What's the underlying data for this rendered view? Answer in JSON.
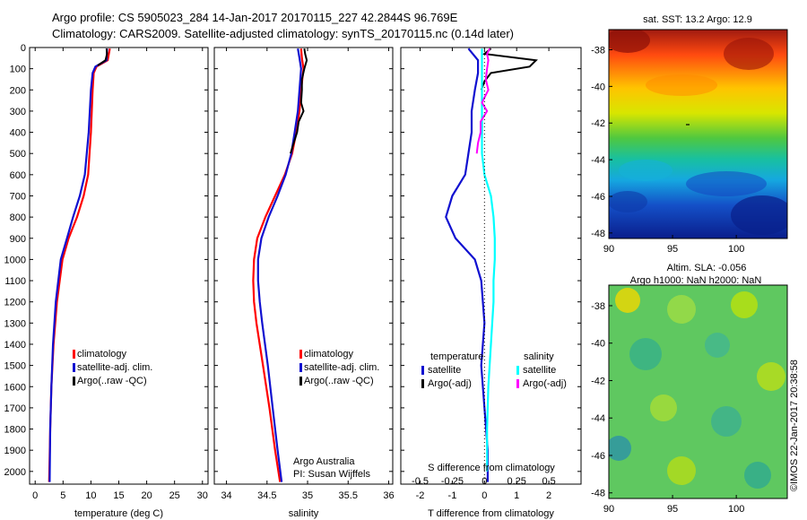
{
  "header": {
    "line1": "Argo profile: CS 5905023_284 14-Jan-2017 20170115_227 42.2844S 96.769E",
    "line2": "Climatology: CARS2009. Satellite-adjusted climatology: synTS_20170115.nc (0.14d later)"
  },
  "colors": {
    "climatology": "#ff0000",
    "satellite": "#1010d0",
    "argo": "#000000",
    "s_satellite": "#00ffff",
    "s_argo": "#ff00ff"
  },
  "chart_data": [
    {
      "id": "temperature",
      "type": "line",
      "xlabel": "temperature (deg C)",
      "xlim": [
        -1,
        31
      ],
      "xticks": [
        0,
        5,
        10,
        15,
        20,
        25,
        30
      ],
      "xtick_labels": [
        "0",
        "5",
        "10",
        "15",
        "20",
        "25",
        "30"
      ],
      "ylim": [
        2060,
        0
      ],
      "yticks": [
        0,
        100,
        200,
        300,
        400,
        500,
        600,
        700,
        800,
        900,
        1000,
        1100,
        1200,
        1300,
        1400,
        1500,
        1600,
        1700,
        1800,
        1900,
        2000
      ],
      "legend": [
        "climatology",
        "satellite-adj. clim.",
        "Argo(..raw -QC)"
      ],
      "series": [
        {
          "name": "climatology",
          "color": "#ff0000",
          "depth": [
            5,
            60,
            90,
            120,
            200,
            400,
            600,
            700,
            800,
            900,
            1000,
            1200,
            1400,
            1600,
            1800,
            2050
          ],
          "values": [
            13.4,
            13.0,
            11.0,
            10.5,
            10.3,
            10.0,
            9.5,
            8.7,
            7.5,
            6.0,
            4.9,
            3.9,
            3.3,
            2.9,
            2.7,
            2.5
          ]
        },
        {
          "name": "satellite-adj. clim.",
          "color": "#1010d0",
          "depth": [
            5,
            60,
            90,
            120,
            200,
            400,
            600,
            700,
            800,
            900,
            1000,
            1200,
            1400,
            1600,
            1800,
            2050
          ],
          "values": [
            12.9,
            12.8,
            10.8,
            10.3,
            10.0,
            9.6,
            8.9,
            8.0,
            6.8,
            5.7,
            4.6,
            3.7,
            3.2,
            2.9,
            2.7,
            2.6
          ]
        },
        {
          "name": "Argo(..raw -QC)",
          "color": "#000000",
          "depth": [
            5,
            30,
            60,
            85
          ],
          "values": [
            12.8,
            12.9,
            12.6,
            11.2
          ]
        }
      ]
    },
    {
      "id": "salinity",
      "type": "line",
      "xlabel": "salinity",
      "xlim": [
        33.85,
        36.05
      ],
      "xticks": [
        34,
        34.5,
        35,
        35.5,
        36
      ],
      "xtick_labels": [
        "34",
        "34.5",
        "35",
        "35.5",
        "36"
      ],
      "ylim": [
        2060,
        0
      ],
      "yticks": [
        0,
        100,
        200,
        300,
        400,
        500,
        600,
        700,
        800,
        900,
        1000,
        1100,
        1200,
        1300,
        1400,
        1500,
        1600,
        1700,
        1800,
        1900,
        2000
      ],
      "legend": [
        "climatology",
        "satellite-adj. clim.",
        "Argo(..raw -QC)"
      ],
      "annotation": [
        "Argo Australia",
        "PI: Susan Wijffels"
      ],
      "series": [
        {
          "name": "climatology",
          "color": "#ff0000",
          "depth": [
            5,
            50,
            100,
            200,
            300,
            400,
            500,
            600,
            700,
            800,
            900,
            1000,
            1100,
            1200,
            1300,
            1500,
            1700,
            1900,
            2050
          ],
          "values": [
            34.92,
            34.93,
            34.95,
            34.92,
            34.9,
            34.86,
            34.81,
            34.72,
            34.6,
            34.48,
            34.38,
            34.34,
            34.33,
            34.34,
            34.37,
            34.45,
            34.53,
            34.6,
            34.66
          ]
        },
        {
          "name": "satellite-adj. clim.",
          "color": "#1010d0",
          "depth": [
            5,
            50,
            100,
            200,
            300,
            400,
            500,
            600,
            700,
            800,
            900,
            1000,
            1100,
            1200,
            1300,
            1500,
            1700,
            1900,
            2050
          ],
          "values": [
            34.88,
            34.9,
            34.92,
            34.9,
            34.88,
            34.84,
            34.8,
            34.73,
            34.63,
            34.52,
            34.43,
            34.39,
            34.39,
            34.41,
            34.44,
            34.51,
            34.57,
            34.63,
            34.68
          ]
        },
        {
          "name": "Argo(..raw -QC)",
          "color": "#000000",
          "depth": [
            5,
            30,
            60,
            100,
            150,
            200,
            260,
            300,
            350,
            400,
            450,
            500
          ],
          "values": [
            34.96,
            34.97,
            34.99,
            34.96,
            34.93,
            34.93,
            34.92,
            34.95,
            34.89,
            34.87,
            34.83,
            34.79
          ]
        }
      ]
    },
    {
      "id": "difference",
      "type": "line",
      "xlabel": "T difference from climatology",
      "xlabel_top": "S difference from climatology",
      "xlim": [
        -2.6,
        3.0
      ],
      "xticks": [
        -2,
        -1,
        0,
        1,
        2
      ],
      "xtick_labels": [
        "-2",
        "-1",
        "0",
        "1",
        "2"
      ],
      "xticks_top": [
        "-0.5",
        "-0.25",
        "0",
        "0.25",
        "0.5"
      ],
      "ylim": [
        2060,
        0
      ],
      "yticks": [
        0,
        100,
        200,
        300,
        400,
        500,
        600,
        700,
        800,
        900,
        1000,
        1100,
        1200,
        1300,
        1400,
        1500,
        1600,
        1700,
        1800,
        1900,
        2000
      ],
      "legend": {
        "temperature": [
          "satellite",
          "Argo(-adj)"
        ],
        "salinity": [
          "satellite",
          "Argo(-adj)"
        ]
      },
      "legend_headers": [
        "temperature",
        "salinity"
      ],
      "series": [
        {
          "name": "temperature satellite",
          "color": "#1010d0",
          "depth": [
            5,
            60,
            120,
            200,
            300,
            400,
            500,
            600,
            700,
            800,
            900,
            1000,
            1100,
            1300,
            1500,
            1700,
            1900,
            2050
          ],
          "values": [
            -0.5,
            -0.2,
            -0.2,
            -0.3,
            -0.4,
            -0.4,
            -0.5,
            -0.6,
            -1.0,
            -1.2,
            -0.9,
            -0.3,
            -0.1,
            0.0,
            -0.1,
            0.0,
            0.1,
            0.1
          ]
        },
        {
          "name": "temperature Argo(-adj)",
          "color": "#000000",
          "depth": [
            5,
            30,
            60,
            90,
            120,
            160,
            200
          ],
          "values": [
            0.2,
            0.0,
            1.6,
            1.4,
            0.2,
            0.0,
            -0.1
          ]
        },
        {
          "name": "salinity satellite",
          "color": "#00ffff",
          "depth": [
            5,
            100,
            200,
            300,
            400,
            500,
            600,
            700,
            800,
            900,
            1000,
            1100,
            1200,
            1400,
            1600,
            1800,
            2000
          ],
          "values": [
            -0.02,
            -0.02,
            -0.02,
            -0.02,
            -0.02,
            -0.02,
            0.0,
            0.05,
            0.07,
            0.08,
            0.08,
            0.07,
            0.07,
            0.05,
            0.03,
            0.02,
            0.02
          ]
        },
        {
          "name": "salinity Argo(-adj)",
          "color": "#ff00ff",
          "depth": [
            5,
            30,
            60,
            100,
            150,
            200,
            260,
            300,
            350,
            400,
            450,
            500
          ],
          "values": [
            0.04,
            0.02,
            0.03,
            0.02,
            0.01,
            0.03,
            -0.02,
            0.02,
            -0.03,
            -0.03,
            -0.05,
            -0.06
          ]
        }
      ]
    }
  ],
  "maps": [
    {
      "title": "sat. SST: 13.2 Argo: 12.9",
      "xtick_labels": [
        "90",
        "95",
        "100"
      ],
      "ytick_labels": [
        "-38",
        "-40",
        "-42",
        "-44",
        "-46",
        "-48"
      ]
    },
    {
      "title_line1": "Altim. SLA: -0.056",
      "title_line2": "Argo h1000: NaN h2000: NaN",
      "xtick_labels": [
        "90",
        "95",
        "100"
      ],
      "ytick_labels": [
        "-38",
        "-40",
        "-42",
        "-44",
        "-46",
        "-48"
      ]
    }
  ],
  "credit": "©IMOS 22-Jan-2017 20:38:58"
}
